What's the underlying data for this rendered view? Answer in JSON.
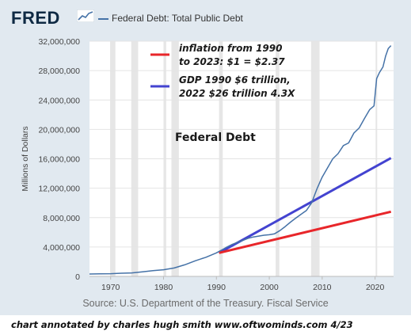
{
  "header": {
    "logo_text": "FRED",
    "series_title": "Federal Debt: Total Public Debt"
  },
  "source": "Source: U.S. Department of the Treasury. Fiscal Service",
  "credit": "chart annotated by charles hugh smith   www.oftwominds.com  4/23",
  "colors": {
    "frame": "#e1e9f0",
    "debt_line": "#4572a7",
    "inflation_line": "#e8262a",
    "gdp_line": "#4343d0",
    "recession_band": "#e6e6e6"
  },
  "chart_data": {
    "type": "line",
    "title": "Federal Debt",
    "ylabel": "Millions of Dollars",
    "xlabel": "",
    "xlim": [
      1966,
      2023.5
    ],
    "ylim": [
      0,
      32000000
    ],
    "xticks": [
      1970,
      1980,
      1990,
      2000,
      2010,
      2020
    ],
    "yticks": [
      0,
      4000000,
      8000000,
      12000000,
      16000000,
      20000000,
      24000000,
      28000000,
      32000000
    ],
    "ytick_labels": [
      "0",
      "4,000,000",
      "8,000,000",
      "12,000,000",
      "16,000,000",
      "20,000,000",
      "24,000,000",
      "28,000,000",
      "32,000,000"
    ],
    "recessions": [
      [
        1969.9,
        1970.9
      ],
      [
        1973.9,
        1975.2
      ],
      [
        1980.0,
        1980.5
      ],
      [
        1981.5,
        1982.9
      ],
      [
        1990.5,
        1991.2
      ],
      [
        2001.2,
        2001.9
      ],
      [
        2007.9,
        2009.5
      ],
      [
        2020.1,
        2020.4
      ]
    ],
    "series": [
      {
        "name": "Federal Debt: Total Public Debt",
        "x": [
          1966,
          1968,
          1970,
          1972,
          1974,
          1976,
          1978,
          1980,
          1982,
          1984,
          1986,
          1988,
          1990,
          1991,
          1992,
          1993,
          1994,
          1995,
          1996,
          1997,
          1998,
          1999,
          2000,
          2001,
          2002,
          2003,
          2004,
          2005,
          2006,
          2007,
          2008,
          2009,
          2010,
          2011,
          2012,
          2013,
          2014,
          2015,
          2016,
          2017,
          2018,
          2019,
          2019.8,
          2020.3,
          2020.8,
          2021.5,
          2022,
          2022.5,
          2023
        ],
        "values": [
          320000,
          345000,
          370000,
          430000,
          475000,
          620000,
          780000,
          910000,
          1140000,
          1570000,
          2120000,
          2600000,
          3200000,
          3600000,
          4000000,
          4350000,
          4640000,
          4900000,
          5180000,
          5370000,
          5480000,
          5600000,
          5670000,
          5800000,
          6230000,
          6780000,
          7380000,
          7930000,
          8450000,
          8950000,
          10000000,
          11900000,
          13500000,
          14750000,
          16000000,
          16700000,
          17800000,
          18150000,
          19500000,
          20200000,
          21500000,
          22700000,
          23200000,
          26900000,
          27700000,
          28500000,
          30000000,
          31000000,
          31400000
        ]
      },
      {
        "name": "inflation from 1990 to 2023: $1 = $2.37",
        "x": [
          1990.5,
          2023
        ],
        "values": [
          3200000,
          8800000
        ]
      },
      {
        "name": "GDP 1990 $6 trillion, 2022 $26 trillion 4.3X",
        "x": [
          1990.5,
          2023
        ],
        "values": [
          3200000,
          16100000
        ]
      }
    ],
    "annotations": [
      "inflation from 1990",
      "to 2023: $1 = $2.37",
      "GDP 1990 $6 trillion,",
      "2022 $26 trillion 4.3X",
      "Federal Debt"
    ]
  }
}
